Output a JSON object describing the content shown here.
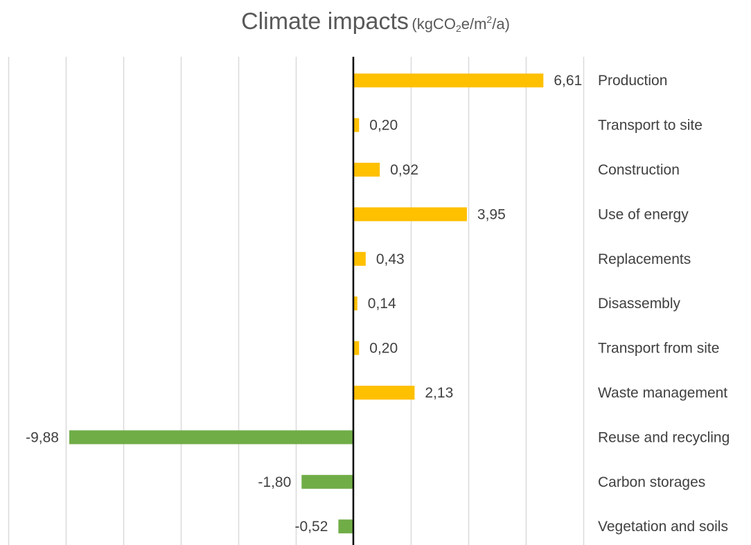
{
  "chart_data": {
    "type": "bar",
    "orientation": "horizontal",
    "title": "Climate impacts",
    "unit": {
      "prefix": "(kgCO",
      "sub": "2",
      "middle": "e/m",
      "sup": "2",
      "suffix": "/a)"
    },
    "categories": [
      "Production",
      "Transport to site",
      "Construction",
      "Use of energy",
      "Replacements",
      "Disassembly",
      "Transport from site",
      "Waste management",
      "Reuse and recycling",
      "Carbon storages",
      "Vegetation and soils"
    ],
    "values": [
      6.61,
      0.2,
      0.92,
      3.95,
      0.43,
      0.14,
      0.2,
      2.13,
      -9.88,
      -1.8,
      -0.52
    ],
    "value_labels": [
      "6,61",
      "0,20",
      "0,92",
      "3,95",
      "0,43",
      "0,14",
      "0,20",
      "2,13",
      "-9,88",
      "-1,80",
      "-0,52"
    ],
    "xlim": [
      -12,
      8
    ],
    "grid_step": 2,
    "grid": true,
    "legend": "none",
    "colors": {
      "positive": "#FFC000",
      "negative": "#70AD47",
      "axis": "#000000",
      "grid": "#D9D9D9"
    }
  }
}
